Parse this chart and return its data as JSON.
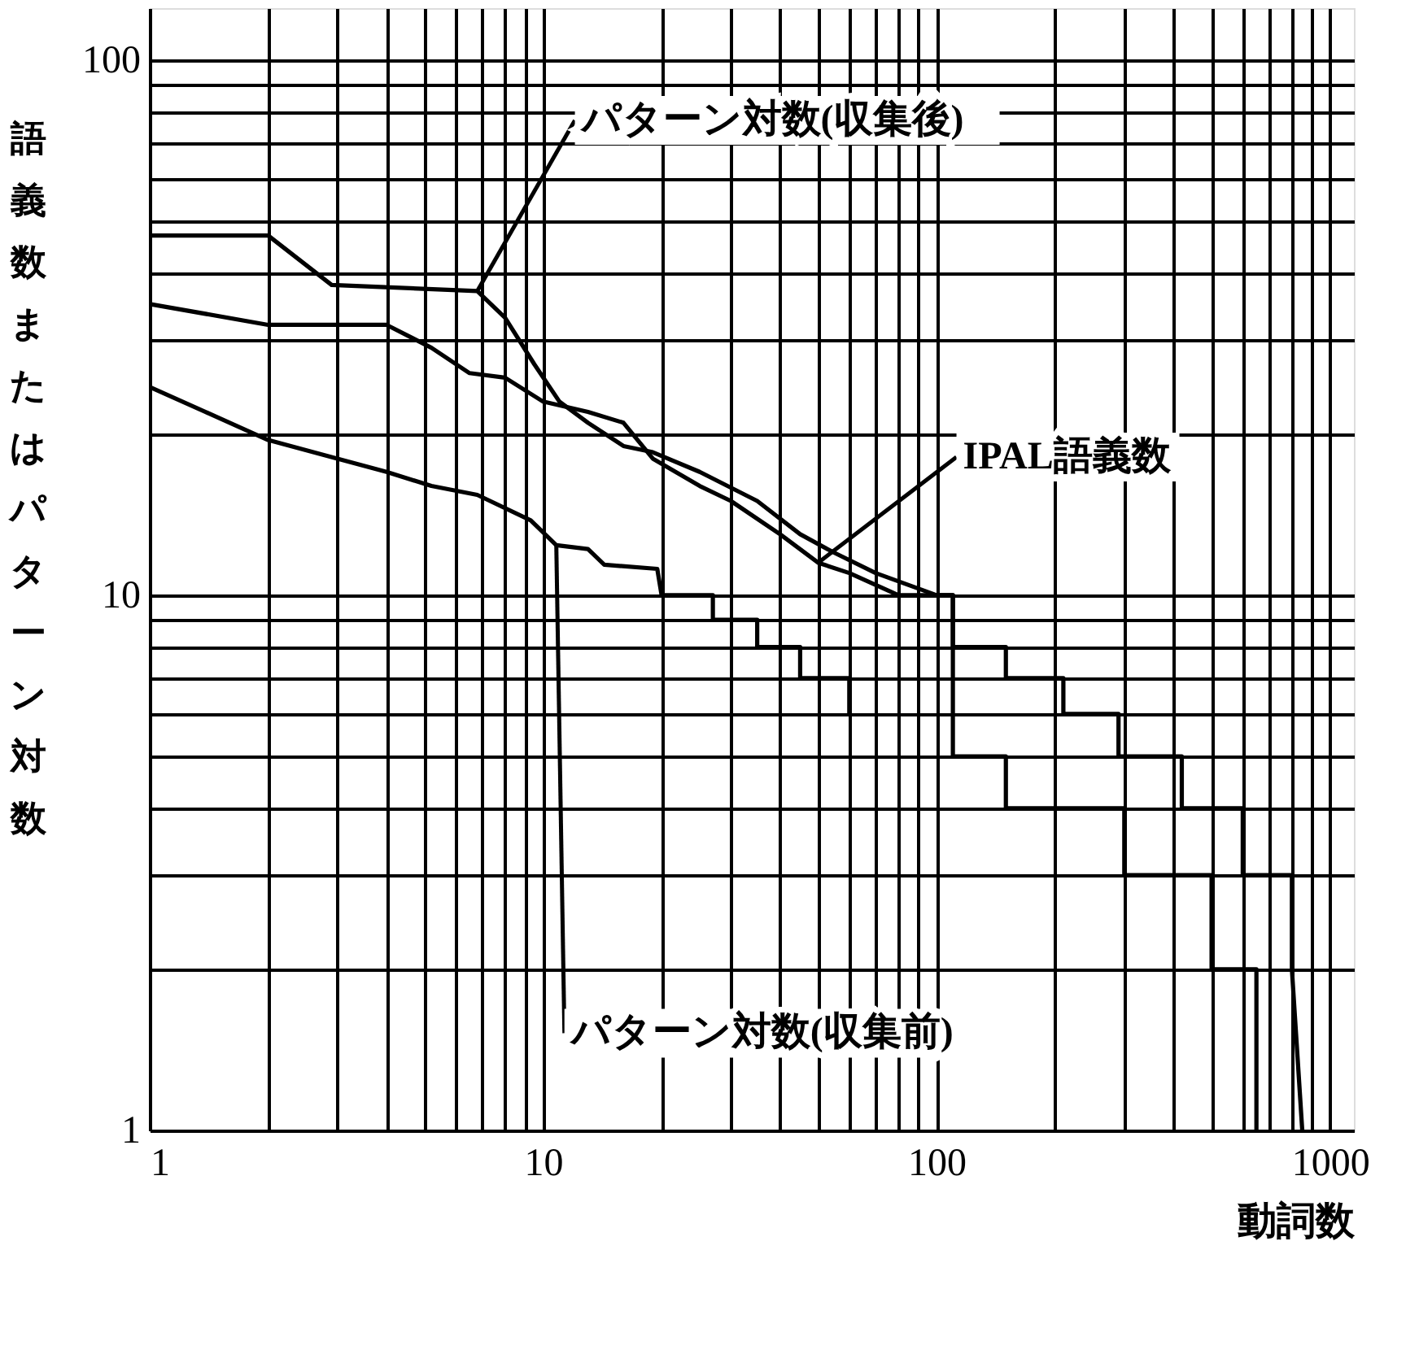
{
  "chart_data": {
    "type": "line",
    "xlabel": "動詞数",
    "ylabel": "語義数またはパターン対数",
    "log": "xy",
    "grid": true,
    "line_style": "solid",
    "marker": "none",
    "xlim": [
      1,
      1150
    ],
    "ylim": [
      1,
      125
    ],
    "xticks": [
      1,
      {
        "value": 2,
        "label": null
      },
      {
        "value": 3,
        "label": null
      },
      {
        "value": 4,
        "label": null
      },
      {
        "value": 5,
        "label": null
      },
      {
        "value": 6,
        "label": null
      },
      {
        "value": 7,
        "label": null
      },
      {
        "value": 8,
        "label": null
      },
      {
        "value": 9,
        "label": null
      },
      10,
      {
        "value": 20,
        "label": null
      },
      {
        "value": 30,
        "label": null
      },
      {
        "value": 40,
        "label": null
      },
      {
        "value": 50,
        "label": null
      },
      {
        "value": 60,
        "label": null
      },
      {
        "value": 70,
        "label": null
      },
      {
        "value": 80,
        "label": null
      },
      {
        "value": 90,
        "label": null
      },
      100,
      {
        "value": 200,
        "label": null
      },
      {
        "value": 300,
        "label": null
      },
      {
        "value": 400,
        "label": null
      },
      {
        "value": 500,
        "label": null
      },
      {
        "value": 600,
        "label": null
      },
      {
        "value": 700,
        "label": null
      },
      {
        "value": 800,
        "label": null
      },
      {
        "value": 900,
        "label": null
      },
      1000
    ],
    "yticks": [
      1,
      {
        "value": 2,
        "label": null
      },
      {
        "value": 3,
        "label": null
      },
      {
        "value": 4,
        "label": null
      },
      {
        "value": 5,
        "label": null
      },
      {
        "value": 6,
        "label": null
      },
      {
        "value": 7,
        "label": null
      },
      {
        "value": 8,
        "label": null
      },
      {
        "value": 9,
        "label": null
      },
      10,
      {
        "value": 20,
        "label": null
      },
      {
        "value": 30,
        "label": null
      },
      {
        "value": 40,
        "label": null
      },
      {
        "value": 50,
        "label": null
      },
      {
        "value": 60,
        "label": null
      },
      {
        "value": 70,
        "label": null
      },
      {
        "value": 80,
        "label": null
      },
      {
        "value": 90,
        "label": null
      },
      100
    ],
    "series": [
      {
        "color": "#000000",
        "x": [
          1,
          2,
          2.9,
          6.8,
          8,
          9.5,
          11,
          13,
          16,
          19,
          25,
          35,
          45,
          55,
          70,
          100,
          110,
          110,
          150,
          150,
          210,
          210,
          290,
          290,
          420,
          420,
          600,
          600,
          800,
          800,
          850
        ],
        "values": [
          47,
          47,
          38,
          37,
          33,
          27,
          23,
          21,
          19,
          18.5,
          17,
          15,
          13,
          12,
          11,
          10,
          10,
          8,
          8,
          7,
          7,
          6,
          6,
          5,
          5,
          4,
          4,
          3,
          3,
          2,
          1
        ]
      },
      {
        "color": "#000000",
        "x": [
          1,
          2,
          4,
          5.2,
          6.5,
          8,
          10,
          13,
          16,
          19,
          25,
          30,
          40,
          50,
          60,
          80,
          110,
          110,
          150,
          150,
          300,
          300,
          500,
          500,
          650,
          650
        ],
        "values": [
          35,
          32,
          32,
          29,
          26,
          25.5,
          23,
          22,
          21,
          18,
          16,
          15,
          13,
          11.5,
          11,
          10,
          10,
          5,
          5,
          4,
          4,
          3,
          3,
          2,
          2,
          1
        ]
      },
      {
        "color": "#000000",
        "x": [
          1,
          2,
          3,
          4,
          5.2,
          6.8,
          9.3,
          10.8,
          13,
          14.3,
          19.5,
          20,
          27,
          27,
          35,
          35,
          45,
          45,
          60,
          60
        ],
        "values": [
          24.5,
          19.5,
          18,
          17,
          16,
          15.4,
          13.8,
          12.4,
          12.2,
          11.4,
          11.2,
          10,
          10,
          9,
          9,
          8,
          8,
          7,
          7,
          6
        ]
      }
    ],
    "annotations": [
      {
        "text": "パターン対数(収集後)",
        "x": 6.8,
        "y": 37
      },
      {
        "text": "IPAL語義数",
        "x": 50,
        "y": 11.5
      },
      {
        "text": "パターン対数(収集前)",
        "x": 10.8,
        "y": 12.4
      }
    ]
  }
}
